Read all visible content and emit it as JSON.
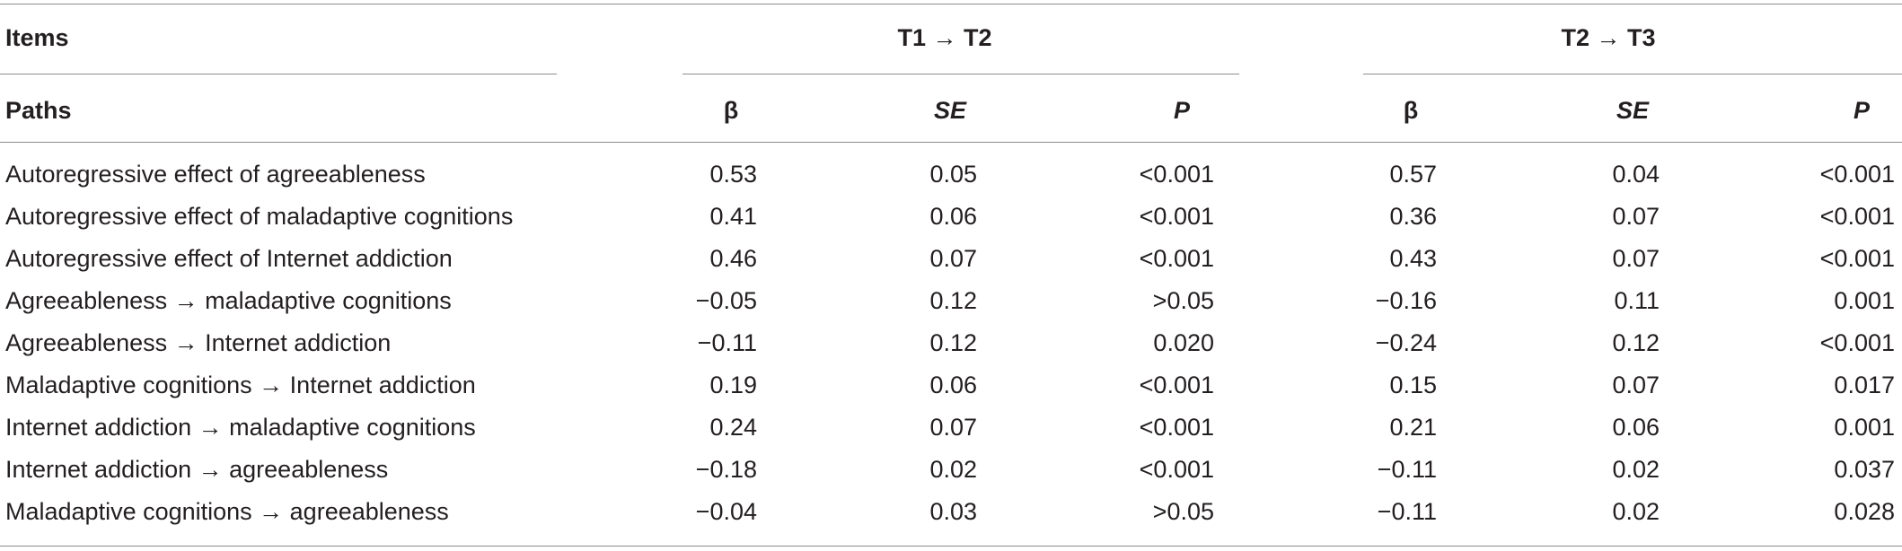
{
  "header": {
    "items_label": "Items",
    "paths_label": "Paths",
    "group_t1t2": "T1 → T2",
    "group_t2t3": "T2 → T3",
    "col_beta": "β",
    "col_se": "SE",
    "col_p": "P"
  },
  "rows": [
    {
      "path": "Autoregressive effect of agreeableness",
      "t1_beta": "0.53",
      "t1_se": "0.05",
      "t1_p": "<0.001",
      "t2_beta": "0.57",
      "t2_se": "0.04",
      "t2_p": "<0.001"
    },
    {
      "path": "Autoregressive effect of maladaptive cognitions",
      "t1_beta": "0.41",
      "t1_se": "0.06",
      "t1_p": "<0.001",
      "t2_beta": "0.36",
      "t2_se": "0.07",
      "t2_p": "<0.001"
    },
    {
      "path": "Autoregressive effect of Internet addiction",
      "t1_beta": "0.46",
      "t1_se": "0.07",
      "t1_p": "<0.001",
      "t2_beta": "0.43",
      "t2_se": "0.07",
      "t2_p": "<0.001"
    },
    {
      "path": "Agreeableness → maladaptive cognitions",
      "t1_beta": "−0.05",
      "t1_se": "0.12",
      "t1_p": ">0.05",
      "t2_beta": "−0.16",
      "t2_se": "0.11",
      "t2_p": "0.001"
    },
    {
      "path": "Agreeableness → Internet addiction",
      "t1_beta": "−0.11",
      "t1_se": "0.12",
      "t1_p": "0.020",
      "t2_beta": "−0.24",
      "t2_se": "0.12",
      "t2_p": "<0.001"
    },
    {
      "path": "Maladaptive cognitions → Internet addiction",
      "t1_beta": "0.19",
      "t1_se": "0.06",
      "t1_p": "<0.001",
      "t2_beta": "0.15",
      "t2_se": "0.07",
      "t2_p": "0.017"
    },
    {
      "path": "Internet addiction → maladaptive cognitions",
      "t1_beta": "0.24",
      "t1_se": "0.07",
      "t1_p": "<0.001",
      "t2_beta": "0.21",
      "t2_se": "0.06",
      "t2_p": "0.001"
    },
    {
      "path": "Internet addiction → agreeableness",
      "t1_beta": "−0.18",
      "t1_se": "0.02",
      "t1_p": "<0.001",
      "t2_beta": "−0.11",
      "t2_se": "0.02",
      "t2_p": "0.037"
    },
    {
      "path": "Maladaptive cognitions → agreeableness",
      "t1_beta": "−0.04",
      "t1_se": "0.03",
      "t1_p": ">0.05",
      "t2_beta": "−0.11",
      "t2_se": "0.02",
      "t2_p": "0.028"
    }
  ]
}
